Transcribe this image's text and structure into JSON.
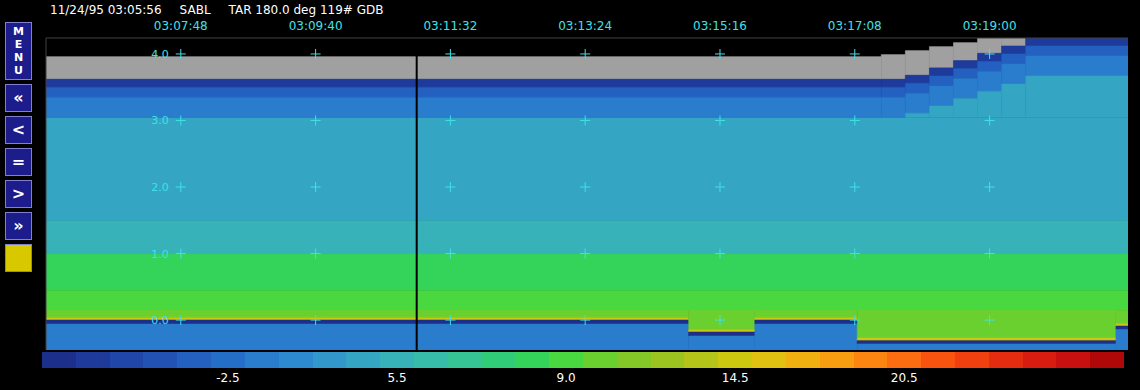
{
  "header": {
    "datetime": "11/24/95 03:05:56",
    "station": "SABL",
    "info": "TAR 180.0 deg 119# GDB"
  },
  "buttons": [
    "MENU",
    "«",
    "<",
    "=",
    ">",
    "»"
  ],
  "chart_data": {
    "type": "heatmap",
    "xlim": [
      356,
      1255
    ],
    "ylim": [
      -0.45,
      4.24
    ],
    "xticks": [
      {
        "value": 468,
        "label": "03:07:48"
      },
      {
        "value": 580,
        "label": "03:09:40"
      },
      {
        "value": 692,
        "label": "03:11:32"
      },
      {
        "value": 804,
        "label": "03:13:24"
      },
      {
        "value": 916,
        "label": "03:15:16"
      },
      {
        "value": 1028,
        "label": "03:17:08"
      },
      {
        "value": 1140,
        "label": "03:19:00"
      }
    ],
    "yticks": [
      {
        "value": 4,
        "label": "4.0"
      },
      {
        "value": 3,
        "label": "3.0"
      },
      {
        "value": 2,
        "label": "2.0"
      },
      {
        "value": 1,
        "label": "1.0"
      },
      {
        "value": 0,
        "label": "0.0"
      }
    ],
    "grid": true,
    "cursor": 664,
    "cells": [
      {
        "x0": 356,
        "x1": 1255,
        "y0": 1.5,
        "y1": 3.05,
        "value": 4
      },
      {
        "x0": 356,
        "x1": 1255,
        "y0": 1.0,
        "y1": 1.5,
        "value": 5.5
      },
      {
        "x0": 356,
        "x1": 1255,
        "y0": 0.45,
        "y1": 1.0,
        "value": 8.3
      },
      {
        "x0": 356,
        "x1": 1255,
        "y0": 0.15,
        "y1": 0.45,
        "value": 9.0
      },
      {
        "x0": 356,
        "x1": 890,
        "y0": 0.04,
        "y1": 0.15,
        "value": 10.1
      },
      {
        "x0": 356,
        "x1": 890,
        "y0": 0.0,
        "y1": 0.04,
        "value": 14.5
      },
      {
        "x0": 356,
        "x1": 890,
        "y0": -0.06,
        "y1": 0.0,
        "value": -10.5
      },
      {
        "x0": 356,
        "x1": 890,
        "y0": -0.45,
        "y1": -0.06,
        "value": -1
      },
      {
        "x0": 890,
        "x1": 945,
        "y0": -0.14,
        "y1": 0.15,
        "value": 10.1
      },
      {
        "x0": 890,
        "x1": 945,
        "y0": -0.18,
        "y1": -0.14,
        "value": 14.5
      },
      {
        "x0": 890,
        "x1": 945,
        "y0": -0.24,
        "y1": -0.18,
        "value": -10.5
      },
      {
        "x0": 890,
        "x1": 945,
        "y0": -0.45,
        "y1": -0.24,
        "value": -1
      },
      {
        "x0": 945,
        "x1": 1030,
        "y0": 0.04,
        "y1": 0.15,
        "value": 10.1
      },
      {
        "x0": 945,
        "x1": 1030,
        "y0": 0.0,
        "y1": 0.04,
        "value": 14.5
      },
      {
        "x0": 945,
        "x1": 1030,
        "y0": -0.06,
        "y1": 0.0,
        "value": -10.5
      },
      {
        "x0": 945,
        "x1": 1030,
        "y0": -0.45,
        "y1": -0.06,
        "value": -1
      },
      {
        "x0": 1030,
        "x1": 1245,
        "y0": -0.27,
        "y1": 0.15,
        "value": 10.1
      },
      {
        "x0": 1030,
        "x1": 1245,
        "y0": -0.31,
        "y1": -0.27,
        "value": 14.5
      },
      {
        "x0": 1030,
        "x1": 1245,
        "y0": -0.36,
        "y1": -0.31,
        "value": -10.5
      },
      {
        "x0": 1030,
        "x1": 1245,
        "y0": -0.45,
        "y1": -0.36,
        "value": -1
      },
      {
        "x0": 1245,
        "x1": 1255,
        "y0": -0.05,
        "y1": 0.15,
        "value": 10.1
      },
      {
        "x0": 1245,
        "x1": 1255,
        "y0": -0.09,
        "y1": -0.05,
        "value": 14.5
      },
      {
        "x0": 1245,
        "x1": 1255,
        "y0": -0.14,
        "y1": -0.09,
        "value": -10.5
      },
      {
        "x0": 1245,
        "x1": 1255,
        "y0": -0.45,
        "y1": -0.14,
        "value": -1
      },
      {
        "x0": 356,
        "x1": 1050,
        "y0": 3.62,
        "y1": 3.96,
        "value": null
      },
      {
        "x0": 356,
        "x1": 1050,
        "y0": 3.5,
        "y1": 3.62,
        "value": -9
      },
      {
        "x0": 356,
        "x1": 1050,
        "y0": 3.35,
        "y1": 3.5,
        "value": -4
      },
      {
        "x0": 356,
        "x1": 1050,
        "y0": 3.05,
        "y1": 3.35,
        "value": -1
      },
      {
        "x0": 1050,
        "x1": 1070,
        "y0": 3.62,
        "y1": 3.99,
        "value": null
      },
      {
        "x0": 1050,
        "x1": 1070,
        "y0": 3.5,
        "y1": 3.62,
        "value": -9
      },
      {
        "x0": 1050,
        "x1": 1070,
        "y0": 3.35,
        "y1": 3.5,
        "value": -4
      },
      {
        "x0": 1050,
        "x1": 1070,
        "y0": 3.05,
        "y1": 3.35,
        "value": -1
      },
      {
        "x0": 1070,
        "x1": 1090,
        "y0": 3.68,
        "y1": 4.05,
        "value": null
      },
      {
        "x0": 1070,
        "x1": 1090,
        "y0": 3.56,
        "y1": 3.68,
        "value": -9
      },
      {
        "x0": 1070,
        "x1": 1090,
        "y0": 3.41,
        "y1": 3.56,
        "value": -4
      },
      {
        "x0": 1070,
        "x1": 1090,
        "y0": 3.11,
        "y1": 3.41,
        "value": -1
      },
      {
        "x0": 1070,
        "x1": 1090,
        "y0": 3.05,
        "y1": 3.11,
        "value": 4
      },
      {
        "x0": 1090,
        "x1": 1110,
        "y0": 3.79,
        "y1": 4.11,
        "value": null
      },
      {
        "x0": 1090,
        "x1": 1110,
        "y0": 3.67,
        "y1": 3.79,
        "value": -9
      },
      {
        "x0": 1090,
        "x1": 1110,
        "y0": 3.52,
        "y1": 3.67,
        "value": -4
      },
      {
        "x0": 1090,
        "x1": 1110,
        "y0": 3.22,
        "y1": 3.52,
        "value": -1
      },
      {
        "x0": 1090,
        "x1": 1110,
        "y0": 3.05,
        "y1": 3.22,
        "value": 4
      },
      {
        "x0": 1110,
        "x1": 1130,
        "y0": 3.9,
        "y1": 4.17,
        "value": null
      },
      {
        "x0": 1110,
        "x1": 1130,
        "y0": 3.78,
        "y1": 3.9,
        "value": -9
      },
      {
        "x0": 1110,
        "x1": 1130,
        "y0": 3.63,
        "y1": 3.78,
        "value": -4
      },
      {
        "x0": 1110,
        "x1": 1130,
        "y0": 3.33,
        "y1": 3.63,
        "value": -1
      },
      {
        "x0": 1110,
        "x1": 1130,
        "y0": 3.05,
        "y1": 3.33,
        "value": 4
      },
      {
        "x0": 1130,
        "x1": 1150,
        "y0": 4.01,
        "y1": 4.24,
        "value": null
      },
      {
        "x0": 1130,
        "x1": 1150,
        "y0": 3.89,
        "y1": 4.01,
        "value": -9
      },
      {
        "x0": 1130,
        "x1": 1150,
        "y0": 3.74,
        "y1": 3.89,
        "value": -4
      },
      {
        "x0": 1130,
        "x1": 1150,
        "y0": 3.44,
        "y1": 3.74,
        "value": -1
      },
      {
        "x0": 1130,
        "x1": 1150,
        "y0": 3.05,
        "y1": 3.44,
        "value": 4
      },
      {
        "x0": 1150,
        "x1": 1170,
        "y0": 4.12,
        "y1": 4.24,
        "value": null
      },
      {
        "x0": 1150,
        "x1": 1170,
        "y0": 4.0,
        "y1": 4.12,
        "value": -9
      },
      {
        "x0": 1150,
        "x1": 1170,
        "y0": 3.85,
        "y1": 4.0,
        "value": -4
      },
      {
        "x0": 1150,
        "x1": 1170,
        "y0": 3.55,
        "y1": 3.85,
        "value": -1
      },
      {
        "x0": 1150,
        "x1": 1170,
        "y0": 3.05,
        "y1": 3.55,
        "value": 4
      },
      {
        "x0": 1170,
        "x1": 1255,
        "y0": 4.12,
        "y1": 4.24,
        "value": -9
      },
      {
        "x0": 1170,
        "x1": 1255,
        "y0": 3.97,
        "y1": 4.12,
        "value": -4
      },
      {
        "x0": 1170,
        "x1": 1255,
        "y0": 3.67,
        "y1": 3.97,
        "value": -1
      },
      {
        "x0": 1170,
        "x1": 1255,
        "y0": 3.05,
        "y1": 3.67,
        "value": 4
      }
    ],
    "colorbar": {
      "levels": [
        -10.5,
        -9,
        -7.5,
        -6,
        -4,
        -2.5,
        -1,
        0.5,
        2,
        4,
        5.5,
        6.2,
        6.9,
        7.6,
        8.3,
        9.0,
        10.1,
        11.2,
        12.3,
        13.4,
        14.5,
        15.7,
        16.9,
        18.1,
        19.3,
        20.5,
        21.7,
        22.9,
        24.1,
        25.3,
        26.5,
        27.7
      ],
      "colors": [
        "#1c2f8a",
        "#1e3a9a",
        "#1f46a8",
        "#2152b4",
        "#2360c0",
        "#256ec8",
        "#2a7ccc",
        "#2e8ad0",
        "#3298cc",
        "#34a6c4",
        "#36b2b8",
        "#38bcaa",
        "#36c494",
        "#30cc78",
        "#34d45a",
        "#4ad840",
        "#6ad030",
        "#84c828",
        "#9cc420",
        "#b4c418",
        "#ccc810",
        "#e0c010",
        "#f0b010",
        "#f89c10",
        "#fc8410",
        "#fc6c10",
        "#f85410",
        "#f04010",
        "#e42c10",
        "#d81c10",
        "#c81010",
        "#b00808"
      ],
      "ticks": [
        -2.5,
        5.5,
        {
          "value": 9,
          "label": "9.0"
        },
        14.5,
        20.5
      ]
    }
  }
}
